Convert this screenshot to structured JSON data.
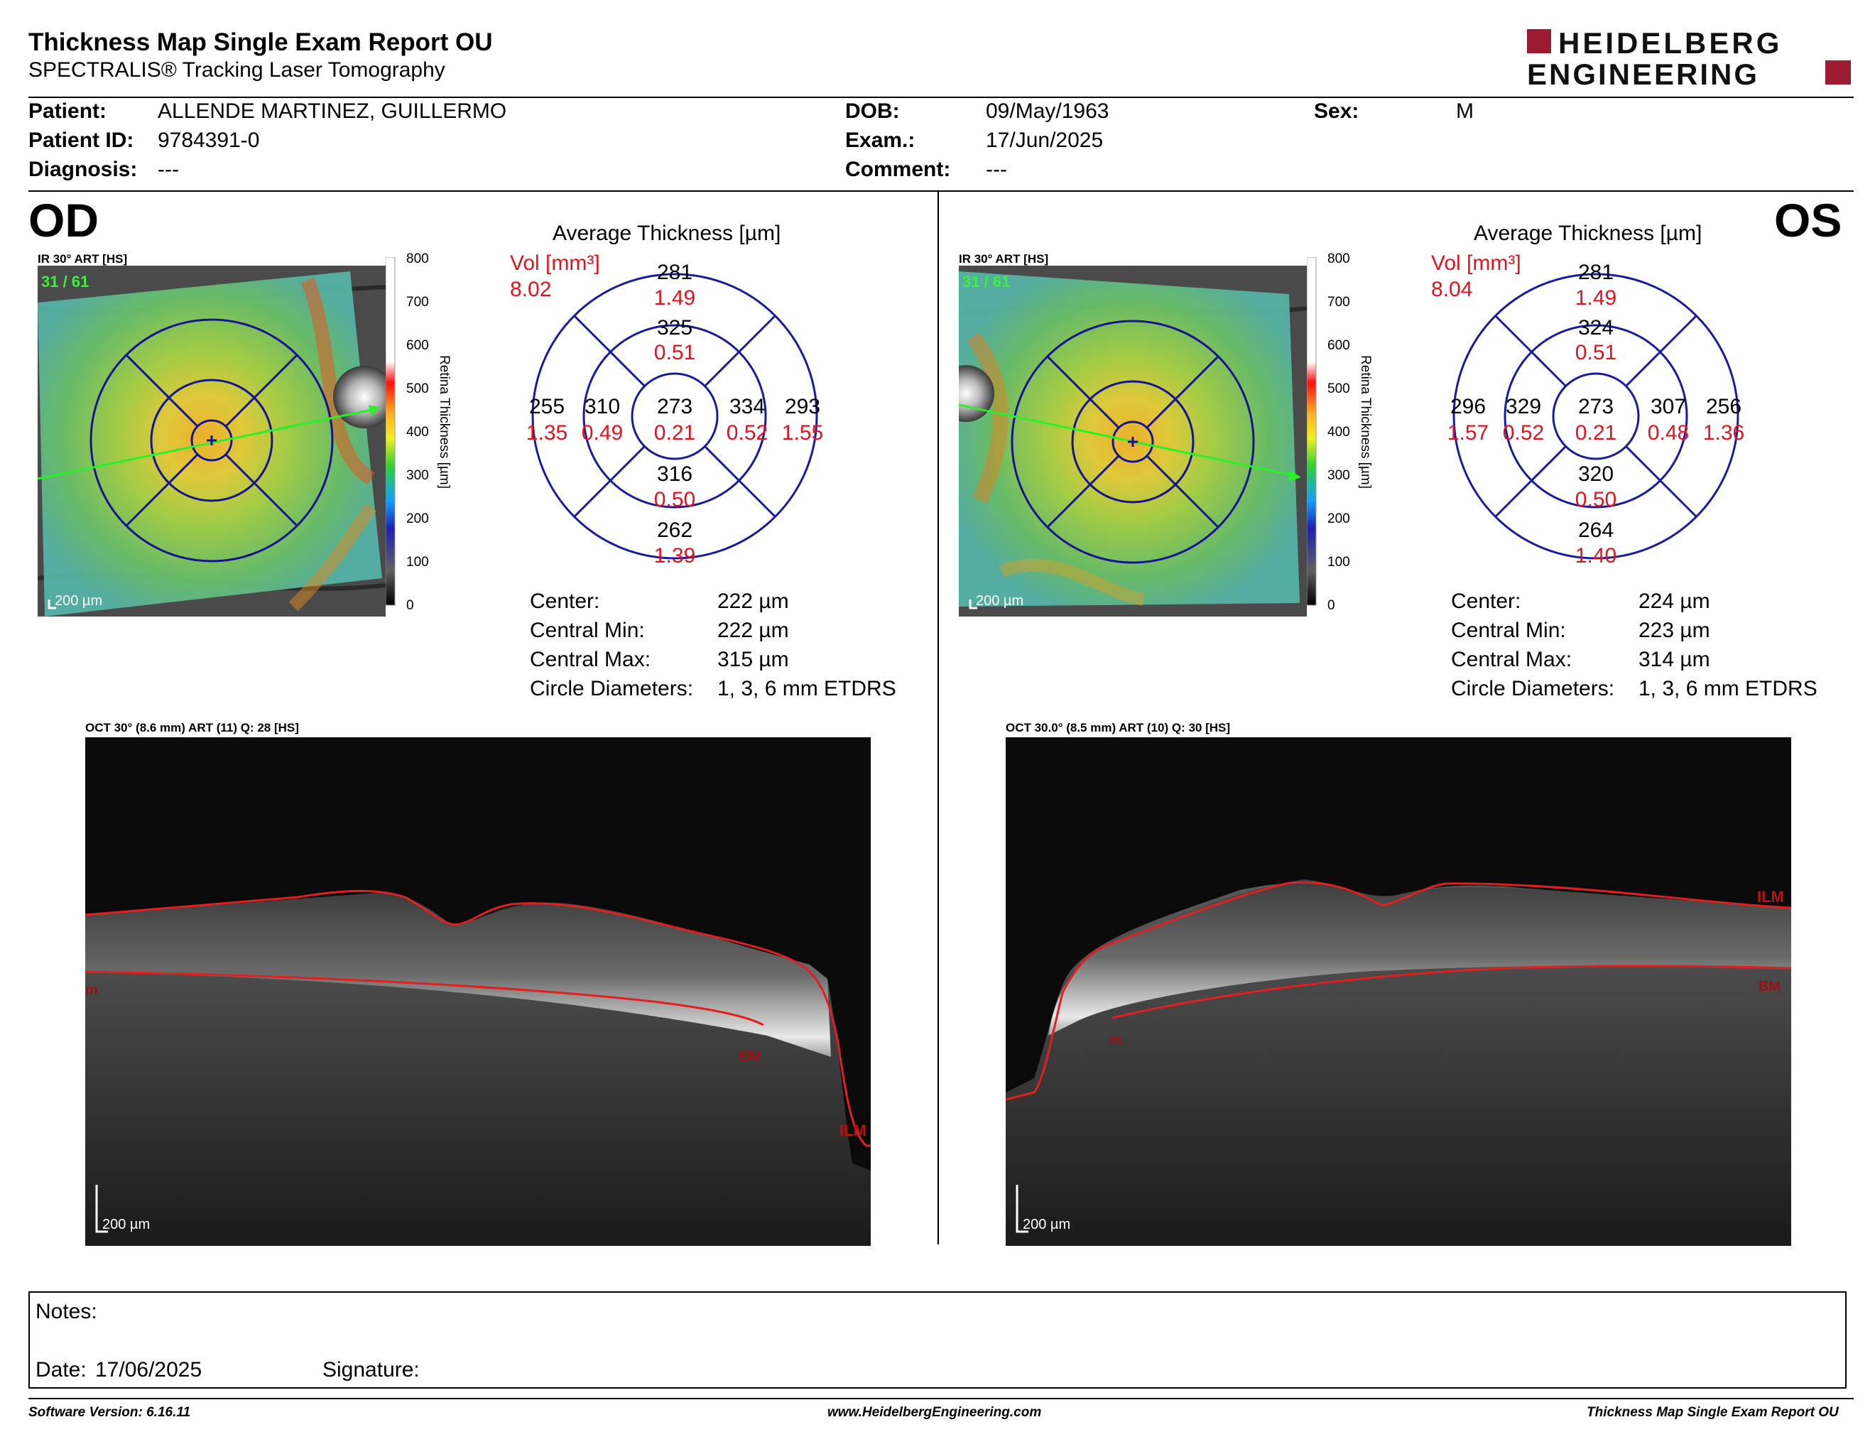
{
  "header": {
    "title": "Thickness Map Single Exam Report OU",
    "subtitle": "SPECTRALIS® Tracking Laser Tomography",
    "logo_line1": "HEIDELBERG",
    "logo_line2": "ENGINEERING",
    "brand_color": "#9b1b30"
  },
  "patient": {
    "name_label": "Patient:",
    "name": "ALLENDE MARTINEZ, GUILLERMO",
    "id_label": "Patient ID:",
    "id": "9784391-0",
    "diagnosis_label": "Diagnosis:",
    "diagnosis": "---",
    "dob_label": "DOB:",
    "dob": "09/May/1963",
    "exam_label": "Exam.:",
    "exam": "17/Jun/2025",
    "comment_label": "Comment:",
    "comment": "---",
    "sex_label": "Sex:",
    "sex": "M"
  },
  "od": {
    "eye": "OD",
    "ir_label": "IR 30° ART [HS]",
    "frame": "31 / 61",
    "scale": "200 µm",
    "grid_title": "Average Thickness [µm]",
    "vol_label": "Vol [mm³]",
    "vol_total": "8.02",
    "grid": {
      "center": {
        "t": "273",
        "v": "0.21"
      },
      "inner_sup": {
        "t": "325",
        "v": "0.51"
      },
      "inner_inf": {
        "t": "316",
        "v": "0.50"
      },
      "inner_left": {
        "t": "310",
        "v": "0.49"
      },
      "inner_right": {
        "t": "334",
        "v": "0.52"
      },
      "outer_sup": {
        "t": "281",
        "v": "1.49"
      },
      "outer_inf": {
        "t": "262",
        "v": "1.39"
      },
      "outer_left": {
        "t": "255",
        "v": "1.35"
      },
      "outer_right": {
        "t": "293",
        "v": "1.55"
      }
    },
    "stats": {
      "center_label": "Center:",
      "center": "222 µm",
      "min_label": "Central Min:",
      "min": "222 µm",
      "max_label": "Central Max:",
      "max": "315 µm",
      "diam_label": "Circle Diameters:",
      "diam": "1, 3, 6 mm ETDRS"
    },
    "oct_label": "OCT 30° (8.6 mm) ART (11) Q: 28 [HS]",
    "oct_scale": "200 µm",
    "ilm": "ILM",
    "bm": "BM",
    "m": "m"
  },
  "os": {
    "eye": "OS",
    "ir_label": "IR 30° ART [HS]",
    "frame": "31 / 61",
    "scale": "200 µm",
    "grid_title": "Average Thickness [µm]",
    "vol_label": "Vol [mm³]",
    "vol_total": "8.04",
    "grid": {
      "center": {
        "t": "273",
        "v": "0.21"
      },
      "inner_sup": {
        "t": "324",
        "v": "0.51"
      },
      "inner_inf": {
        "t": "320",
        "v": "0.50"
      },
      "inner_left": {
        "t": "329",
        "v": "0.52"
      },
      "inner_right": {
        "t": "307",
        "v": "0.48"
      },
      "outer_sup": {
        "t": "281",
        "v": "1.49"
      },
      "outer_inf": {
        "t": "264",
        "v": "1.40"
      },
      "outer_left": {
        "t": "296",
        "v": "1.57"
      },
      "outer_right": {
        "t": "256",
        "v": "1.36"
      }
    },
    "stats": {
      "center_label": "Center:",
      "center": "224 µm",
      "min_label": "Central Min:",
      "min": "223 µm",
      "max_label": "Central Max:",
      "max": "314 µm",
      "diam_label": "Circle Diameters:",
      "diam": "1, 3, 6 mm ETDRS"
    },
    "oct_label": "OCT 30.0° (8.5 mm) ART (10) Q: 30 [HS]",
    "oct_scale": "200 µm",
    "ilm": "ILM",
    "bm": "BM",
    "m": "m"
  },
  "colorbar": {
    "ticks": [
      "800",
      "700",
      "600",
      "500",
      "400",
      "300",
      "200",
      "100",
      "0"
    ],
    "title": "Retina Thickness [µm]"
  },
  "notes": {
    "notes_label": "Notes:",
    "date_label": "Date:",
    "date": "17/06/2025",
    "signature_label": "Signature:"
  },
  "footer": {
    "software": "Software Version: 6.16.11",
    "website": "www.HeidelbergEngineering.com",
    "report": "Thickness Map Single Exam Report OU"
  },
  "colors": {
    "grid_blue": "#1a1a9e",
    "volume_red": "#e0141e",
    "segmentation_red": "#e02020"
  }
}
